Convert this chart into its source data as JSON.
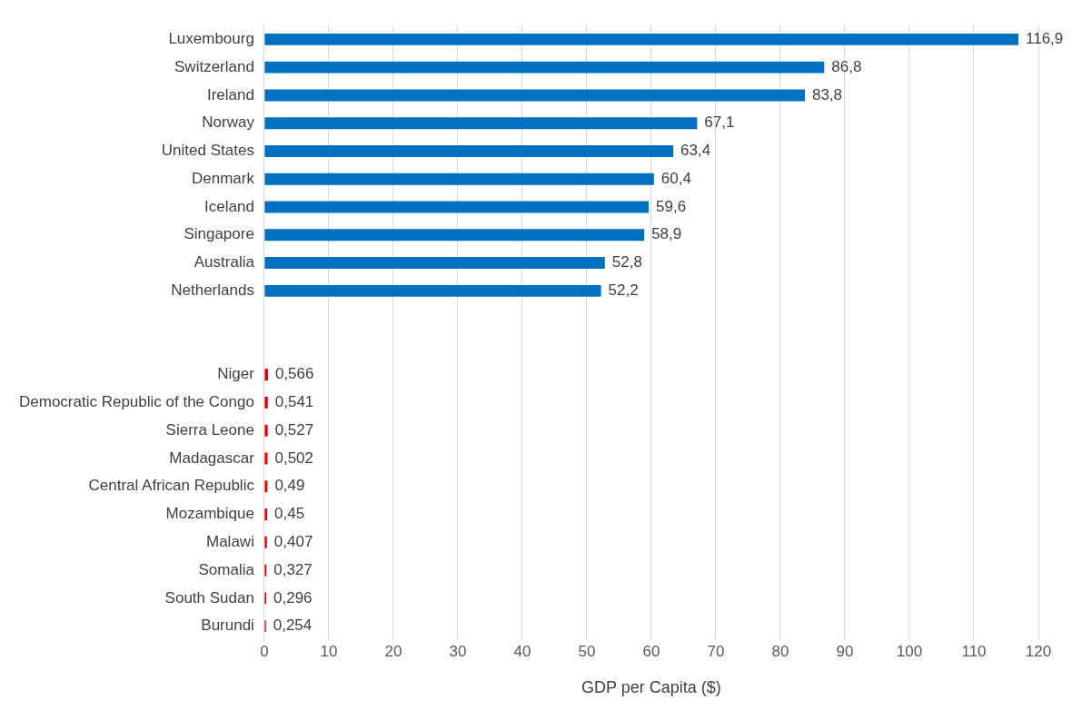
{
  "chart_data": {
    "type": "bar",
    "orientation": "horizontal",
    "xlabel": "GDP per Capita ($)",
    "categories": [
      "Luxembourg",
      "Switzerland",
      "Ireland",
      "Norway",
      "United States",
      "Denmark",
      "Iceland",
      "Singapore",
      "Australia",
      "Netherlands",
      null,
      null,
      "Niger",
      "Democratic Republic of the Congo",
      "Sierra Leone",
      "Madagascar",
      "Central African Republic",
      "Mozambique",
      "Malawi",
      "Somalia",
      "South Sudan",
      "Burundi"
    ],
    "values": [
      116.9,
      86.8,
      83.8,
      67.1,
      63.4,
      60.4,
      59.6,
      58.9,
      52.8,
      52.2,
      null,
      null,
      0.566,
      0.541,
      0.527,
      0.502,
      0.49,
      0.45,
      0.407,
      0.327,
      0.296,
      0.254
    ],
    "value_labels": [
      "116,9",
      "86,8",
      "83,8",
      "67,1",
      "63,4",
      "60,4",
      "59,6",
      "58,9",
      "52,8",
      "52,2",
      null,
      null,
      "0,566",
      "0,541",
      "0,527",
      "0,502",
      "0,49",
      "0,45",
      "0,407",
      "0,327",
      "0,296",
      "0,254"
    ],
    "colors": [
      "#0070c0",
      "#0070c0",
      "#0070c0",
      "#0070c0",
      "#0070c0",
      "#0070c0",
      "#0070c0",
      "#0070c0",
      "#0070c0",
      "#0070c0",
      null,
      null,
      "#e00000",
      "#e00000",
      "#e00000",
      "#e00000",
      "#e00000",
      "#e00000",
      "#e00000",
      "#e00000",
      "#e00000",
      "#e00000"
    ],
    "xlim": [
      0,
      120
    ],
    "xticks": [
      0,
      10,
      20,
      30,
      40,
      50,
      60,
      70,
      80,
      90,
      100,
      110,
      120
    ],
    "grid": "x",
    "legend": false
  }
}
